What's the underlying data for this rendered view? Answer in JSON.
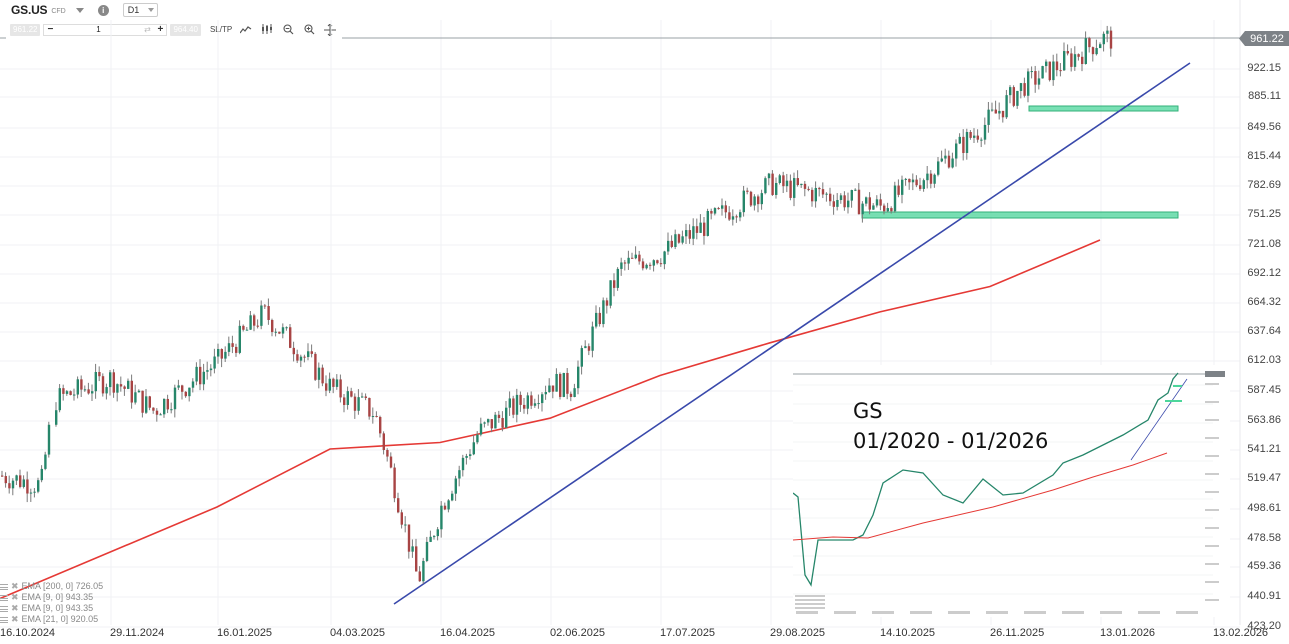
{
  "toolbar": {
    "symbol": "GS.US",
    "instrument_type": "CFD",
    "timeframe": "D1",
    "sell_price": "961.22",
    "buy_price": "964.40",
    "quantity": "1",
    "minus_label": "−",
    "plus_label": "+",
    "sltp_label": "SL/TP",
    "info_glyph": "i",
    "sync_glyph": "⇄"
  },
  "current_price_tag": "961.22",
  "inset": {
    "title_line1": "GS",
    "title_line2": "01/2020 - 01/2026"
  },
  "legend": [
    {
      "label": "EMA [200, 0] 726.05"
    },
    {
      "label": "EMA [9, 0] 943.35"
    },
    {
      "label": "EMA [9, 0] 943.35"
    },
    {
      "label": "EMA [21, 0] 920.05"
    }
  ],
  "colors": {
    "up_candle": "#26866a",
    "down_candle": "#a84444",
    "wick": "#7a7a7a",
    "ema200": "#e53935",
    "trendline": "#3949ab",
    "support_zone": "#4cd69b",
    "grid": "#f0f2f4"
  },
  "chart_data": [
    {
      "type": "candlestick",
      "title": "GS.US CFD D1",
      "xlabel": "",
      "ylabel": "",
      "ylim": [
        423.2,
        980
      ],
      "x_tick_labels": [
        "16.10.2024",
        "29.11.2024",
        "16.01.2025",
        "04.03.2025",
        "16.04.2025",
        "02.06.2025",
        "17.07.2025",
        "29.08.2025",
        "14.10.2025",
        "26.11.2025",
        "13.01.2026",
        "13.02.2026"
      ],
      "y_tick_labels": [
        "961.22",
        "922.15",
        "885.11",
        "849.56",
        "815.44",
        "782.69",
        "751.25",
        "721.08",
        "692.12",
        "664.32",
        "637.64",
        "612.03",
        "587.45",
        "563.86",
        "541.21",
        "519.47",
        "498.61",
        "478.58",
        "459.36",
        "440.91",
        "423.20"
      ],
      "grid": true,
      "last_price": 961.22,
      "approx_closes": [
        {
          "date": "16.10.2024",
          "close": 522
        },
        {
          "date": "01.11.2024",
          "close": 515
        },
        {
          "date": "06.11.2024",
          "close": 580
        },
        {
          "date": "29.11.2024",
          "close": 598
        },
        {
          "date": "18.12.2024",
          "close": 572
        },
        {
          "date": "16.01.2025",
          "close": 612
        },
        {
          "date": "04.02.2025",
          "close": 655
        },
        {
          "date": "04.03.2025",
          "close": 590
        },
        {
          "date": "21.03.2025",
          "close": 570
        },
        {
          "date": "07.04.2025",
          "close": 450
        },
        {
          "date": "16.04.2025",
          "close": 500
        },
        {
          "date": "02.05.2025",
          "close": 555
        },
        {
          "date": "02.06.2025",
          "close": 595
        },
        {
          "date": "10.06.2025",
          "close": 590
        },
        {
          "date": "01.07.2025",
          "close": 700
        },
        {
          "date": "17.07.2025",
          "close": 712
        },
        {
          "date": "29.08.2025",
          "close": 785
        },
        {
          "date": "14.10.2025",
          "close": 760
        },
        {
          "date": "03.11.2025",
          "close": 800
        },
        {
          "date": "26.11.2025",
          "close": 860
        },
        {
          "date": "10.12.2025",
          "close": 900
        },
        {
          "date": "05.01.2026",
          "close": 945
        },
        {
          "date": "13.01.2026",
          "close": 961
        }
      ],
      "overlays": [
        {
          "name": "EMA [200, 0]",
          "value": 726.05,
          "color": "#e53935",
          "approx_points": [
            [
              "16.10.2024",
              440
            ],
            [
              "16.01.2025",
              500
            ],
            [
              "04.03.2025",
              542
            ],
            [
              "16.04.2025",
              547
            ],
            [
              "02.06.2025",
              566
            ],
            [
              "17.07.2025",
              600
            ],
            [
              "29.08.2025",
              628
            ],
            [
              "14.10.2025",
              656
            ],
            [
              "26.11.2025",
              680
            ],
            [
              "13.01.2026",
              726
            ]
          ]
        },
        {
          "name": "Trendline",
          "color": "#3949ab",
          "from": [
            "07.04.2025",
            437
          ],
          "to": [
            "05.02.2026",
            928
          ]
        },
        {
          "name": "Support zone 1",
          "color": "#4cd69b",
          "price": 751,
          "from": "10.10.2025",
          "to": "05.02.2026"
        },
        {
          "name": "Support zone 2",
          "color": "#4cd69b",
          "price": 873,
          "from": "28.11.2025",
          "to": "05.02.2026"
        }
      ],
      "legend": [
        "EMA [200, 0] 726.05",
        "EMA [9, 0] 943.35",
        "EMA [9, 0] 943.35",
        "EMA [21, 0] 920.05"
      ]
    },
    {
      "type": "candlestick",
      "title": "GS 01/2020 - 01/2026",
      "note": "inset thumbnail of long-term GS chart with EMA200 (red), trendline (blue) and two support zones (green)",
      "approx_closes": [
        {
          "date": "01.2020",
          "close": 230
        },
        {
          "date": "03.2020",
          "close": 150
        },
        {
          "date": "11.2020",
          "close": 230
        },
        {
          "date": "11.2021",
          "close": 410
        },
        {
          "date": "10.2022",
          "close": 290
        },
        {
          "date": "03.2023",
          "close": 300
        },
        {
          "date": "12.2023",
          "close": 380
        },
        {
          "date": "12.2024",
          "close": 600
        },
        {
          "date": "04.2025",
          "close": 450
        },
        {
          "date": "01.2026",
          "close": 961
        }
      ]
    }
  ]
}
